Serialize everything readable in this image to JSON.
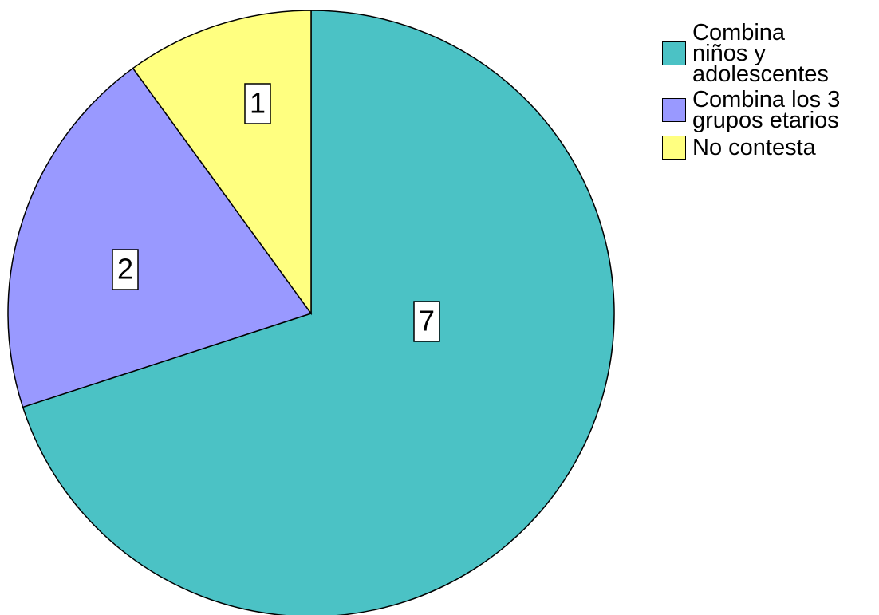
{
  "chart_data": {
    "type": "pie",
    "categories": [
      "Combina niños y adolescentes",
      "Combina los 3 grupos etarios",
      "No contesta"
    ],
    "values": [
      7,
      2,
      1
    ],
    "colors": [
      "#4bc2c5",
      "#9999ff",
      "#ffff80"
    ],
    "legend": "right"
  }
}
